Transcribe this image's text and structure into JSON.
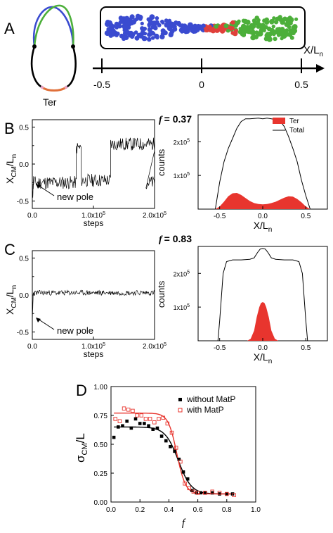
{
  "panels": {
    "A": {
      "letter": "A",
      "ter_label": "Ter",
      "axis_label": "X/L",
      "axis_label_sub": "n",
      "ticks": [
        "-0.5",
        "0",
        "0.5"
      ],
      "tick_values": [
        -0.5,
        0,
        0.5
      ],
      "colors": {
        "blue": "#3a4bd0",
        "green": "#4caf3a",
        "red": "#e0403a",
        "black": "#000000",
        "orange": "#e0703a"
      }
    },
    "B": {
      "letter": "B",
      "f_symbol": "f",
      "f_value": "= 0.37",
      "annotation": "new pole",
      "time_chart": {
        "ylabel": "X",
        "ylabel_sub": "CM",
        "ylabel_tail": "/L",
        "ylabel_tail_sub": "n",
        "xlabel": "steps",
        "yticks": [
          "-0.5",
          "0.0",
          "0.5"
        ],
        "ytick_values": [
          -0.5,
          0.0,
          0.5
        ],
        "yticks_minor": [
          -0.25,
          0.25
        ],
        "xticks": [
          "0.0",
          "1.0x10",
          "2.0x10"
        ],
        "xtick_sup": "5",
        "xtick_values": [
          0,
          100000,
          200000
        ]
      },
      "hist_chart": {
        "ylabel": "counts",
        "xlabel": "X/L",
        "xlabel_sub": "n",
        "yticks": [
          "1x10",
          "2x10"
        ],
        "ytick_sup": "5",
        "ytick_values": [
          100000,
          200000
        ],
        "xticks": [
          "-0.5",
          "0.0",
          "0.5"
        ],
        "xtick_values": [
          -0.5,
          0.0,
          0.5
        ],
        "legend": [
          {
            "name": "Ter",
            "color": "#e8352e"
          },
          {
            "name": "Total",
            "color": "#000000"
          }
        ]
      }
    },
    "C": {
      "letter": "C",
      "f_symbol": "f",
      "f_value": "= 0.83",
      "annotation": "new pole",
      "time_chart": {
        "ylabel": "X",
        "ylabel_sub": "CM",
        "ylabel_tail": "/L",
        "ylabel_tail_sub": "n",
        "xlabel": "steps",
        "yticks": [
          "-0.5",
          "0.0",
          "0.5"
        ],
        "ytick_values": [
          -0.5,
          0.0,
          0.5
        ],
        "yticks_minor": [
          -0.25,
          0.25
        ],
        "xticks": [
          "0.0",
          "1.0x10",
          "2.0x10"
        ],
        "xtick_sup": "5",
        "xtick_values": [
          0,
          100000,
          200000
        ]
      },
      "hist_chart": {
        "ylabel": "counts",
        "xlabel": "X/L",
        "xlabel_sub": "n",
        "yticks": [
          "1x10",
          "2x10"
        ],
        "ytick_sup": "5",
        "ytick_values": [
          100000,
          200000
        ],
        "xticks": [
          "-0.5",
          "0.0",
          "0.5"
        ],
        "xtick_values": [
          -0.5,
          0.0,
          0.5
        ]
      }
    },
    "D": {
      "letter": "D",
      "ylabel": "σ",
      "ylabel_sub": "CM",
      "ylabel_tail": "/L",
      "xlabel": "f",
      "yticks": [
        "0.00",
        "0.25",
        "0.50",
        "0.75",
        "1.00"
      ],
      "xticks": [
        "0.0",
        "0.2",
        "0.4",
        "0.6",
        "0.8",
        "1.0"
      ],
      "legend": [
        {
          "name": "without MatP",
          "color": "#000000",
          "marker": "filled-square"
        },
        {
          "name": "with MatP",
          "color": "#e8352e",
          "marker": "open-square"
        }
      ]
    }
  },
  "chart_data": [
    {
      "type": "line",
      "panel": "B-time",
      "xlabel": "steps",
      "ylabel": "XCM/Ln",
      "xlim": [
        0,
        200000
      ],
      "ylim": [
        -0.6,
        0.6
      ],
      "segments": [
        {
          "x0": 0,
          "x1": 2000,
          "level_start": -0.47,
          "level": -0.22
        },
        {
          "x0": 2000,
          "x1": 72000,
          "level": -0.25
        },
        {
          "x0": 72000,
          "x1": 80000,
          "level": 0.22
        },
        {
          "x0": 80000,
          "x1": 128000,
          "level": -0.22
        },
        {
          "x0": 128000,
          "x1": 200000,
          "level": 0.27
        },
        {
          "x0": 186000,
          "x1": 200000,
          "level": -0.25
        }
      ],
      "noise_amplitude": 0.09,
      "color": "#000000"
    },
    {
      "type": "area",
      "panel": "B-hist",
      "xlabel": "X/Ln",
      "ylabel": "counts",
      "xlim": [
        -0.75,
        0.75
      ],
      "ylim": [
        0,
        280000
      ],
      "series": [
        {
          "name": "Total",
          "x": [
            -0.55,
            -0.5,
            -0.45,
            -0.4,
            -0.35,
            -0.3,
            -0.25,
            -0.2,
            -0.15,
            -0.1,
            -0.05,
            0.0,
            0.05,
            0.1,
            0.15,
            0.2,
            0.25,
            0.3,
            0.35,
            0.4,
            0.45,
            0.5,
            0.55
          ],
          "values": [
            0,
            80000,
            140000,
            180000,
            210000,
            240000,
            260000,
            268000,
            268000,
            269000,
            270000,
            268000,
            270000,
            268000,
            266000,
            262000,
            245000,
            215000,
            180000,
            140000,
            85000,
            40000,
            0
          ]
        },
        {
          "name": "Ter",
          "x": [
            -0.55,
            -0.5,
            -0.45,
            -0.4,
            -0.35,
            -0.3,
            -0.25,
            -0.2,
            -0.15,
            -0.1,
            -0.05,
            0.0,
            0.05,
            0.1,
            0.15,
            0.2,
            0.25,
            0.3,
            0.35,
            0.4,
            0.45,
            0.5,
            0.55
          ],
          "values": [
            0,
            8000,
            22000,
            38000,
            47000,
            48000,
            42000,
            33000,
            24000,
            18000,
            15000,
            14000,
            15000,
            18000,
            22000,
            28000,
            34000,
            38000,
            37000,
            30000,
            20000,
            8000,
            0
          ]
        }
      ],
      "legend": "top-right"
    },
    {
      "type": "line",
      "panel": "C-time",
      "xlabel": "steps",
      "ylabel": "XCM/Ln",
      "xlim": [
        0,
        200000
      ],
      "ylim": [
        -0.6,
        0.6
      ],
      "segments": [
        {
          "x0": 0,
          "x1": 1500,
          "level_start": -0.38,
          "level": 0.03
        },
        {
          "x0": 1500,
          "x1": 200000,
          "level": 0.03
        }
      ],
      "noise_amplitude": 0.035,
      "color": "#000000"
    },
    {
      "type": "area",
      "panel": "C-hist",
      "xlabel": "X/Ln",
      "ylabel": "counts",
      "xlim": [
        -0.75,
        0.75
      ],
      "ylim": [
        0,
        280000
      ],
      "series": [
        {
          "name": "Total",
          "x": [
            -0.52,
            -0.5,
            -0.46,
            -0.42,
            -0.35,
            -0.25,
            -0.15,
            -0.1,
            -0.06,
            -0.03,
            0.0,
            0.03,
            0.06,
            0.1,
            0.15,
            0.25,
            0.35,
            0.42,
            0.46,
            0.5,
            0.52
          ],
          "values": [
            0,
            60000,
            200000,
            235000,
            240000,
            240000,
            242000,
            246000,
            262000,
            272000,
            274000,
            272000,
            262000,
            246000,
            242000,
            240000,
            240000,
            235000,
            200000,
            60000,
            0
          ]
        },
        {
          "name": "Ter",
          "x": [
            -0.18,
            -0.14,
            -0.1,
            -0.07,
            -0.04,
            -0.02,
            0.0,
            0.02,
            0.04,
            0.07,
            0.1,
            0.14,
            0.18
          ],
          "values": [
            0,
            6000,
            30000,
            70000,
            100000,
            112000,
            115000,
            112000,
            100000,
            70000,
            30000,
            6000,
            0
          ]
        }
      ]
    },
    {
      "type": "scatter",
      "panel": "D",
      "xlabel": "f",
      "ylabel": "σCM/L",
      "xlim": [
        0.0,
        1.0
      ],
      "ylim": [
        0.0,
        1.0
      ],
      "series": [
        {
          "name": "without MatP",
          "marker": "filled-square",
          "color": "#000000",
          "x": [
            0.02,
            0.05,
            0.08,
            0.11,
            0.14,
            0.17,
            0.2,
            0.23,
            0.26,
            0.29,
            0.32,
            0.35,
            0.38,
            0.41,
            0.44,
            0.47,
            0.5,
            0.53,
            0.56,
            0.59,
            0.62,
            0.65,
            0.7,
            0.75,
            0.8,
            0.84
          ],
          "values": [
            0.56,
            0.65,
            0.66,
            0.7,
            0.64,
            0.72,
            0.68,
            0.68,
            0.66,
            0.63,
            0.64,
            0.57,
            0.53,
            0.48,
            0.44,
            0.37,
            0.26,
            0.2,
            0.1,
            0.08,
            0.08,
            0.08,
            0.08,
            0.07,
            0.07,
            0.07
          ]
        },
        {
          "name": "with MatP",
          "marker": "open-square",
          "color": "#e8352e",
          "x": [
            0.03,
            0.06,
            0.09,
            0.12,
            0.15,
            0.18,
            0.21,
            0.24,
            0.27,
            0.3,
            0.33,
            0.36,
            0.39,
            0.42,
            0.45,
            0.48,
            0.51,
            0.54,
            0.57,
            0.6,
            0.65,
            0.7,
            0.75,
            0.8,
            0.85
          ],
          "values": [
            0.72,
            0.7,
            0.81,
            0.8,
            0.79,
            0.75,
            0.75,
            0.72,
            0.72,
            0.69,
            0.72,
            0.73,
            0.68,
            0.6,
            0.47,
            0.35,
            0.16,
            0.12,
            0.09,
            0.08,
            0.08,
            0.09,
            0.08,
            0.07,
            0.06
          ]
        },
        {
          "name": "fit without MatP",
          "style": "line",
          "color": "#000000",
          "params": {
            "top": 0.65,
            "bottom": 0.07,
            "center": 0.465,
            "width": 0.045
          }
        },
        {
          "name": "fit with MatP",
          "style": "line",
          "color": "#e8352e",
          "params": {
            "top": 0.77,
            "bottom": 0.07,
            "center": 0.455,
            "width": 0.03
          }
        }
      ],
      "legend": "top-right"
    }
  ]
}
